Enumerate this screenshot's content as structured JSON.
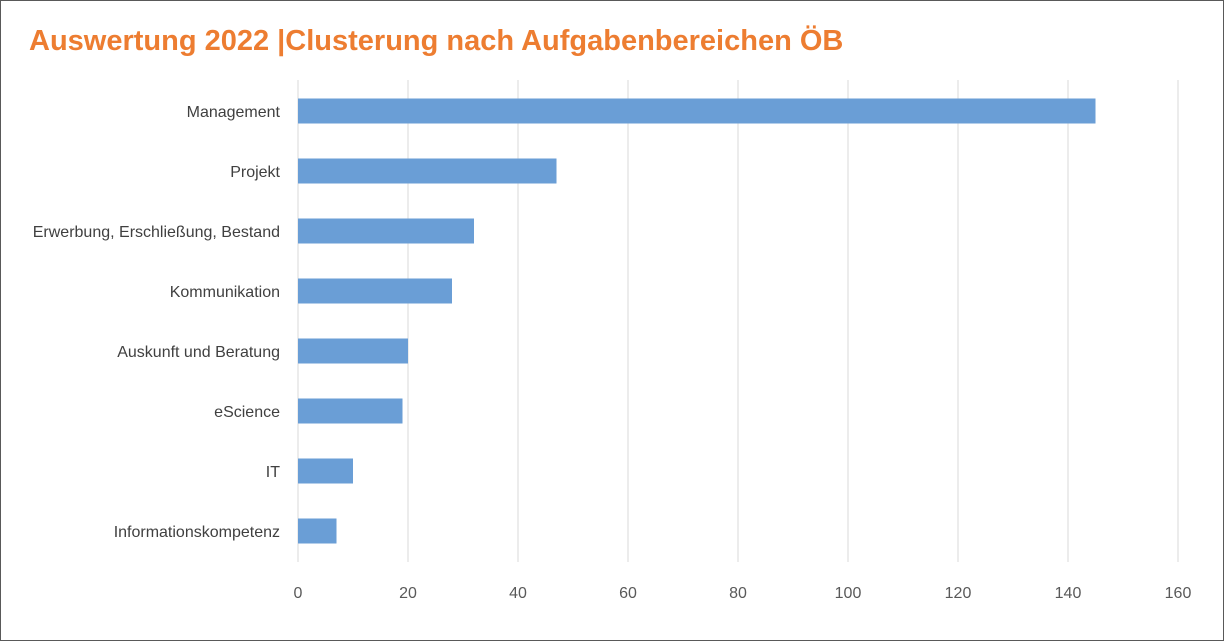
{
  "chart_data": {
    "type": "bar",
    "orientation": "horizontal",
    "title": "Auswertung 2022 |Clusterung nach Aufgabenbereichen ÖB",
    "categories": [
      "Management",
      "Projekt",
      "Erwerbung, Erschließung, Bestand",
      "Kommunikation",
      "Auskunft und Beratung",
      "eScience",
      "IT",
      "Informationskompetenz"
    ],
    "values": [
      145,
      47,
      32,
      28,
      20,
      19,
      10,
      7
    ],
    "xlim": [
      0,
      160
    ],
    "xticks": [
      0,
      20,
      40,
      60,
      80,
      100,
      120,
      140,
      160
    ],
    "grid": "vertical",
    "legend": "none",
    "colors": {
      "bar": "#6A9ED6",
      "grid": "#D9D9D9",
      "title": "#ED7D31"
    }
  }
}
